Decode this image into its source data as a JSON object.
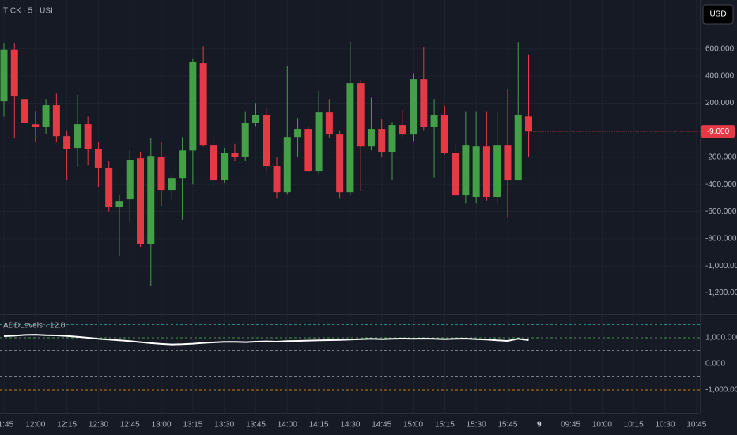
{
  "chart_data": [
    {
      "type": "candlestick",
      "title": "TICK · 5 · USI",
      "currency": "USD",
      "last_label": "-9.000",
      "up_color": "#43a047",
      "down_color": "#e53945",
      "grid": true,
      "categories": [
        "11:45",
        null,
        null,
        "12:00",
        null,
        null,
        "12:15",
        null,
        null,
        "12:30",
        null,
        null,
        "12:45",
        null,
        null,
        "13:00",
        null,
        null,
        "13:15",
        null,
        null,
        "13:30",
        null,
        null,
        "13:45",
        null,
        null,
        "14:00",
        null,
        null,
        "14:15",
        null,
        null,
        "14:30",
        null,
        null,
        "14:45",
        null,
        null,
        "15:00",
        null,
        null,
        "15:15",
        null,
        null,
        "15:30",
        null,
        null,
        "15:45",
        null,
        null,
        "9",
        null,
        null,
        "09:45",
        null,
        null,
        "10:00",
        null,
        null,
        "10:15",
        null,
        null,
        "10:30",
        null,
        null,
        "10:45"
      ],
      "open": [
        213,
        594,
        230,
        43,
        26,
        184,
        -44,
        -131,
        44,
        -137,
        -277,
        -568,
        -510,
        -207,
        -837,
        -195,
        -440,
        -353,
        -150,
        493,
        -108,
        -370,
        -166,
        -195,
        55,
        113,
        -265,
        -458,
        -50,
        9,
        -300,
        131,
        -32,
        -458,
        347,
        -120,
        9,
        -160,
        38,
        -32,
        376,
        26,
        113,
        -166,
        -481,
        -492,
        -120,
        -492,
        -108,
        -370,
        101,
        null,
        null,
        null,
        null,
        null,
        null,
        null,
        null,
        null,
        null,
        null,
        null,
        null,
        null,
        null,
        null
      ],
      "high": [
        640,
        640,
        317,
        142,
        230,
        270,
        0,
        260,
        100,
        -90,
        -230,
        -480,
        -150,
        -160,
        -60,
        -90,
        -330,
        -50,
        530,
        620,
        -50,
        -130,
        -100,
        140,
        200,
        160,
        -200,
        470,
        90,
        30,
        290,
        230,
        0,
        650,
        370,
        240,
        80,
        60,
        150,
        420,
        610,
        230,
        180,
        -100,
        140,
        140,
        140,
        130,
        300,
        650,
        560,
        null,
        null,
        null,
        null,
        null,
        null,
        null,
        null,
        null,
        null,
        null,
        null,
        null,
        null,
        null,
        null
      ],
      "low": [
        100,
        -61,
        -528,
        -90,
        -30,
        -90,
        -370,
        -270,
        -260,
        -420,
        -600,
        -930,
        -680,
        -860,
        -1150,
        -560,
        -510,
        -660,
        -400,
        -120,
        -420,
        -390,
        -230,
        -230,
        30,
        -300,
        -500,
        -470,
        -200,
        -310,
        -320,
        -60,
        -500,
        -480,
        -450,
        -150,
        -200,
        -370,
        -50,
        -80,
        0,
        -350,
        -180,
        -490,
        -540,
        -540,
        -520,
        -540,
        -640,
        -370,
        -200,
        null,
        null,
        null,
        null,
        null,
        null,
        null,
        null,
        null,
        null,
        null,
        null,
        null,
        null,
        null,
        null
      ],
      "close": [
        594,
        248,
        55,
        26,
        184,
        -44,
        -137,
        44,
        -137,
        -277,
        -568,
        -522,
        -218,
        -837,
        -190,
        -440,
        -353,
        -150,
        504,
        -108,
        -370,
        -166,
        -195,
        55,
        113,
        -265,
        -458,
        -50,
        9,
        -300,
        131,
        -32,
        -458,
        347,
        -120,
        9,
        -160,
        38,
        -32,
        376,
        26,
        113,
        -166,
        -481,
        -108,
        -120,
        -492,
        -108,
        -370,
        113,
        -9,
        null,
        null,
        null,
        null,
        null,
        null,
        null,
        null,
        null,
        null,
        null,
        null,
        null,
        null,
        null,
        null
      ],
      "ylim": [
        -1355,
        960
      ],
      "yticks": [
        {
          "value": 600,
          "label": "600.000"
        },
        {
          "value": 400,
          "label": "400.000"
        },
        {
          "value": 200,
          "label": "200.000"
        },
        {
          "value": -200,
          "label": "-200.000"
        },
        {
          "value": -400,
          "label": "-400.000"
        },
        {
          "value": -600,
          "label": "-600.000"
        },
        {
          "value": -800,
          "label": "-800.000"
        },
        {
          "value": -1000,
          "label": "-1,000.000"
        },
        {
          "value": -1200,
          "label": "-1,200.000"
        }
      ]
    },
    {
      "type": "line",
      "title": "ADDLevels · 12.0",
      "color": "#ffffff",
      "values": [
        1060,
        1080,
        1110,
        1120,
        1100,
        1090,
        1070,
        1040,
        1000,
        960,
        930,
        900,
        870,
        830,
        790,
        760,
        740,
        750,
        770,
        800,
        820,
        840,
        840,
        830,
        850,
        860,
        850,
        870,
        880,
        890,
        900,
        910,
        920,
        930,
        950,
        960,
        950,
        960,
        970,
        960,
        970,
        960,
        950,
        960,
        970,
        950,
        930,
        900,
        880,
        960,
        910,
        null,
        null,
        null,
        null,
        null,
        null,
        null,
        null,
        null,
        null,
        null,
        null,
        null,
        null,
        null,
        null
      ],
      "levels": [
        {
          "value": 1500,
          "color": "#26a69a"
        },
        {
          "value": 1000,
          "color": "#4caf50"
        },
        {
          "value": 500,
          "color": "#9598a1"
        },
        {
          "value": -500,
          "color": "#9598a1"
        },
        {
          "value": -1000,
          "color": "#ff9800"
        },
        {
          "value": -1500,
          "color": "#f23645"
        }
      ],
      "ylim": [
        -1880,
        1910
      ],
      "yticks": [
        {
          "value": 1000,
          "label": "1,000.000"
        },
        {
          "value": 0,
          "label": "0.000"
        },
        {
          "value": -1000,
          "label": "-1,000.000"
        }
      ]
    }
  ]
}
